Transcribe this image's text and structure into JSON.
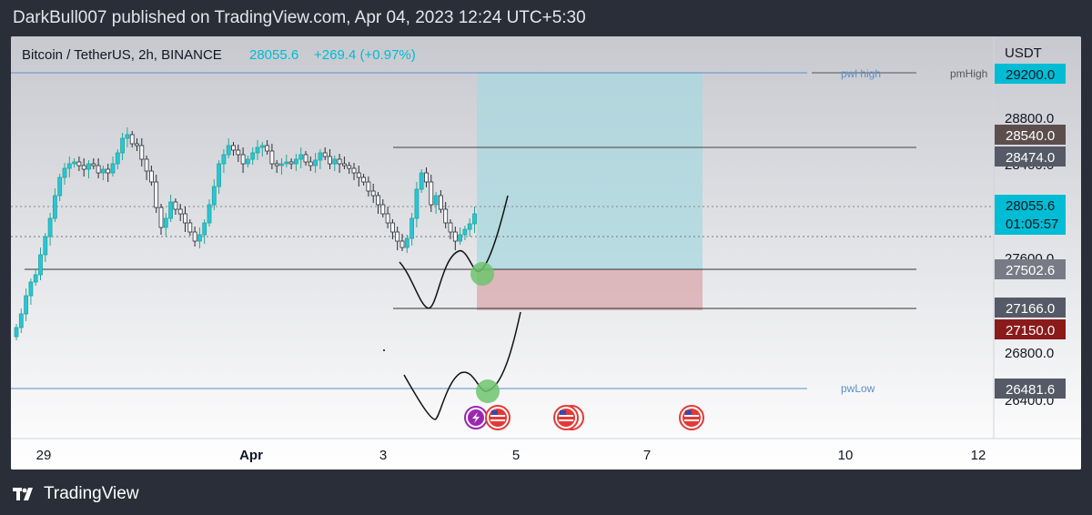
{
  "header": {
    "text": "DarkBull007 published on TradingView.com, Apr 04, 2023 12:24 UTC+5:30"
  },
  "symbol": {
    "name": "Bitcoin / TetherUS, 2h, BINANCE",
    "price": "28055.6",
    "change": "+269.4 (+0.97%)"
  },
  "axis": {
    "currency": "USDT",
    "ticks": [
      "28800.0",
      "28400.0",
      "27600.0",
      "26800.0",
      "26400.0"
    ],
    "time_labels": [
      "29",
      "Apr",
      "3",
      "5",
      "7",
      "10",
      "12"
    ]
  },
  "price_labels": [
    {
      "text": "29200.0",
      "bg": "#00bcd4",
      "fg": "#131722"
    },
    {
      "text": "28540.0",
      "bg": "#5d4e4e",
      "fg": "#ffffff"
    },
    {
      "text": "28474.0",
      "bg": "#555a66",
      "fg": "#ffffff"
    },
    {
      "text": "28055.6",
      "bg": "#00bcd4",
      "fg": "#131722"
    },
    {
      "text": "01:05:57",
      "bg": "#00bcd4",
      "fg": "#131722"
    },
    {
      "text": "27502.6",
      "bg": "#787b86",
      "fg": "#ffffff"
    },
    {
      "text": "27166.0",
      "bg": "#555a66",
      "fg": "#ffffff"
    },
    {
      "text": "27150.0",
      "bg": "#8b1a1a",
      "fg": "#ffffff"
    },
    {
      "text": "26481.6",
      "bg": "#555a66",
      "fg": "#ffffff"
    }
  ],
  "level_labels": {
    "pwl_high": "pwl high",
    "pm_high": "pmHigh",
    "pw_low": "pwLow"
  },
  "colors": {
    "up": "#26a69a",
    "up_fill": "#26c6da",
    "down": "#2a2e39",
    "target_zone": "#a8d8df",
    "stop_zone": "#d9a7ab",
    "accent": "#00bcd4"
  },
  "footer": {
    "brand": "TradingView"
  }
}
